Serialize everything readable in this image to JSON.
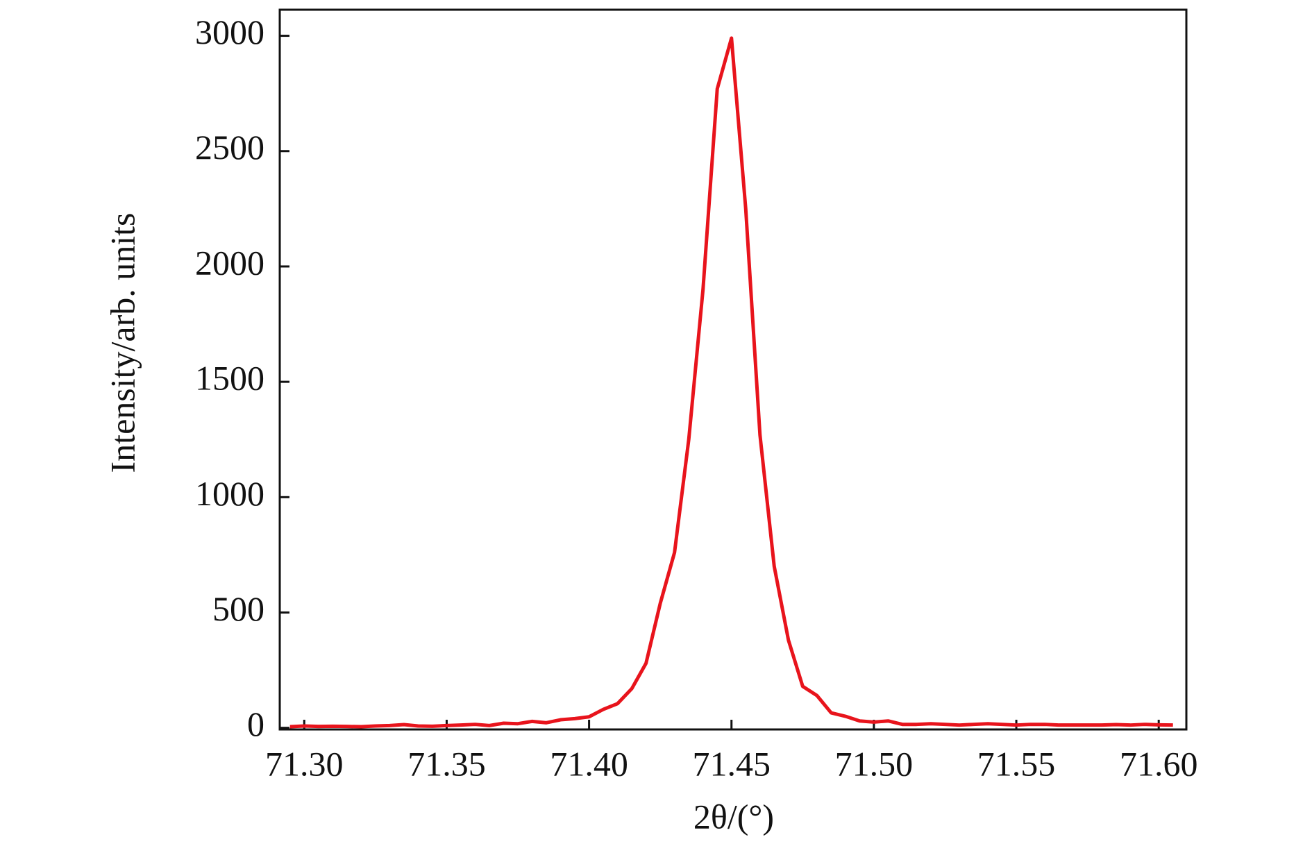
{
  "chart_data": {
    "type": "line",
    "xlabel": "2θ/(°)",
    "ylabel": "Intensity/arb. units",
    "x": [
      71.295,
      71.3,
      71.305,
      71.31,
      71.315,
      71.32,
      71.325,
      71.33,
      71.335,
      71.34,
      71.345,
      71.35,
      71.355,
      71.36,
      71.365,
      71.37,
      71.375,
      71.38,
      71.385,
      71.39,
      71.395,
      71.4,
      71.405,
      71.41,
      71.415,
      71.42,
      71.425,
      71.43,
      71.435,
      71.44,
      71.445,
      71.45,
      71.455,
      71.46,
      71.465,
      71.47,
      71.475,
      71.48,
      71.485,
      71.49,
      71.495,
      71.5,
      71.505,
      71.51,
      71.515,
      71.52,
      71.525,
      71.53,
      71.535,
      71.54,
      71.545,
      71.55,
      71.555,
      71.56,
      71.565,
      71.57,
      71.575,
      71.58,
      71.585,
      71.59,
      71.595,
      71.6,
      71.605
    ],
    "series": [
      {
        "color": "#e8141c",
        "values": [
          5,
          8,
          6,
          7,
          6,
          5,
          8,
          10,
          14,
          8,
          7,
          10,
          12,
          15,
          10,
          20,
          18,
          28,
          22,
          35,
          40,
          48,
          80,
          105,
          170,
          280,
          540,
          760,
          1250,
          1900,
          2770,
          2990,
          2250,
          1270,
          700,
          380,
          180,
          140,
          65,
          50,
          30,
          25,
          30,
          15,
          15,
          18,
          15,
          12,
          15,
          18,
          15,
          12,
          15,
          15,
          12,
          12,
          12,
          12,
          14,
          12,
          15,
          13,
          12
        ]
      }
    ],
    "xlim": [
      71.2914,
      71.6097
    ],
    "ylim": [
      -7,
      3113
    ],
    "xticks": [
      {
        "value": 71.3,
        "label": "71.30"
      },
      {
        "value": 71.35,
        "label": "71.35"
      },
      {
        "value": 71.4,
        "label": "71.40"
      },
      {
        "value": 71.45,
        "label": "71.45"
      },
      {
        "value": 71.5,
        "label": "71.50"
      },
      {
        "value": 71.55,
        "label": "71.55"
      },
      {
        "value": 71.6,
        "label": "71.60"
      }
    ],
    "yticks": [
      0,
      500,
      1000,
      1500,
      2000,
      2500,
      3000
    ]
  }
}
